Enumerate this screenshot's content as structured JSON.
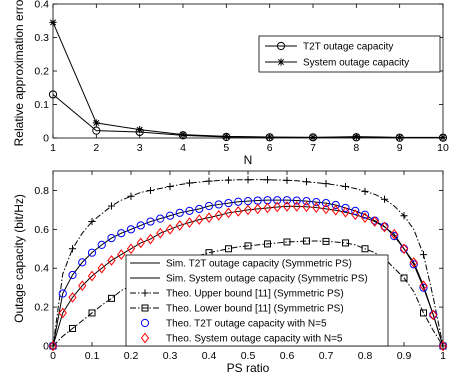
{
  "chart_data": [
    {
      "type": "line",
      "xlabel": "N",
      "ylabel": "Relative approximation error",
      "xlim": [
        1,
        10
      ],
      "ylim": [
        0,
        0.4
      ],
      "x_ticks": [
        "1",
        "2",
        "3",
        "4",
        "5",
        "6",
        "7",
        "8",
        "9",
        "10"
      ],
      "y_ticks": [
        "0",
        "0.1",
        "0.2",
        "0.3",
        "0.4"
      ],
      "grid": false,
      "legend_position": "top-right",
      "x": [
        1,
        2,
        3,
        4,
        5,
        6,
        7,
        8,
        9,
        10
      ],
      "series": [
        {
          "name": "T2T outage capacity",
          "marker": "circle",
          "line": "solid",
          "color": "#000000",
          "values": [
            0.13,
            0.022,
            0.018,
            0.008,
            0.003,
            0.002,
            0.002,
            0.002,
            0.001,
            0.001
          ]
        },
        {
          "name": "System outage capacity",
          "marker": "asterisk",
          "line": "solid",
          "color": "#000000",
          "values": [
            0.345,
            0.045,
            0.025,
            0.01,
            0.005,
            0.003,
            0.002,
            0.004,
            0.002,
            0.002
          ]
        }
      ]
    },
    {
      "type": "line",
      "xlabel": "PS ratio",
      "ylabel": "Outage capacity (bit/Hz)",
      "xlim": [
        0,
        1
      ],
      "ylim": [
        0,
        0.9
      ],
      "x_ticks": [
        "0",
        "0.1",
        "0.2",
        "0.3",
        "0.4",
        "0.5",
        "0.6",
        "0.7",
        "0.8",
        "0.9",
        "1"
      ],
      "y_ticks": [
        "0",
        "0.2",
        "0.4",
        "0.6",
        "0.8"
      ],
      "grid": false,
      "legend_position": "bottom-center",
      "x": [
        0,
        0.025,
        0.05,
        0.075,
        0.1,
        0.125,
        0.15,
        0.175,
        0.2,
        0.225,
        0.25,
        0.275,
        0.3,
        0.325,
        0.35,
        0.375,
        0.4,
        0.425,
        0.45,
        0.475,
        0.5,
        0.525,
        0.55,
        0.575,
        0.6,
        0.625,
        0.65,
        0.675,
        0.7,
        0.725,
        0.75,
        0.775,
        0.8,
        0.825,
        0.85,
        0.875,
        0.9,
        0.925,
        0.95,
        0.975,
        1
      ],
      "series": [
        {
          "name": "Sim. T2T outage capacity (Symmetric PS)",
          "marker": "none",
          "line": "solid",
          "color": "#000000",
          "values": [
            0,
            0.27,
            0.365,
            0.43,
            0.48,
            0.52,
            0.555,
            0.58,
            0.6,
            0.62,
            0.64,
            0.655,
            0.67,
            0.685,
            0.695,
            0.705,
            0.72,
            0.728,
            0.735,
            0.742,
            0.745,
            0.748,
            0.75,
            0.75,
            0.75,
            0.748,
            0.745,
            0.74,
            0.735,
            0.725,
            0.71,
            0.695,
            0.675,
            0.645,
            0.615,
            0.565,
            0.5,
            0.42,
            0.3,
            0.16,
            0
          ]
        },
        {
          "name": "Sim. System outage capacity (Symmetric PS)",
          "marker": "none",
          "line": "solid",
          "color": "#000000",
          "values": [
            0,
            0.17,
            0.25,
            0.31,
            0.36,
            0.4,
            0.44,
            0.47,
            0.5,
            0.53,
            0.55,
            0.58,
            0.6,
            0.62,
            0.635,
            0.65,
            0.66,
            0.672,
            0.685,
            0.692,
            0.7,
            0.705,
            0.71,
            0.715,
            0.718,
            0.718,
            0.716,
            0.712,
            0.705,
            0.698,
            0.688,
            0.675,
            0.66,
            0.64,
            0.612,
            0.575,
            0.5,
            0.43,
            0.31,
            0.16,
            0
          ]
        },
        {
          "name": "Theo. Upper bound [11] (Symmetric PS)",
          "marker": "plus",
          "line": "dashdot",
          "color": "#000000",
          "values": [
            0,
            0.37,
            0.5,
            0.58,
            0.64,
            0.68,
            0.72,
            0.75,
            0.77,
            0.79,
            0.8,
            0.81,
            0.82,
            0.83,
            0.838,
            0.843,
            0.848,
            0.851,
            0.853,
            0.855,
            0.855,
            0.856,
            0.855,
            0.854,
            0.852,
            0.85,
            0.845,
            0.84,
            0.835,
            0.828,
            0.82,
            0.81,
            0.795,
            0.78,
            0.755,
            0.72,
            0.67,
            0.6,
            0.47,
            0.25,
            0
          ]
        },
        {
          "name": "Theo. Lower bound [11] (Symmetric PS)",
          "marker": "square",
          "line": "dashdot",
          "color": "#000000",
          "values": [
            0,
            0.05,
            0.09,
            0.13,
            0.17,
            0.21,
            0.245,
            0.285,
            0.31,
            0.34,
            0.37,
            0.39,
            0.41,
            0.43,
            0.45,
            0.465,
            0.48,
            0.49,
            0.5,
            0.51,
            0.515,
            0.52,
            0.525,
            0.53,
            0.535,
            0.537,
            0.54,
            0.54,
            0.538,
            0.535,
            0.53,
            0.52,
            0.5,
            0.48,
            0.45,
            0.4,
            0.35,
            0.28,
            0.17,
            0.08,
            0
          ]
        },
        {
          "name": "Theo. T2T outage capacity with N=5",
          "marker": "circle",
          "line": "none",
          "color": "#0000ff",
          "values": [
            0,
            0.27,
            0.365,
            0.43,
            0.48,
            0.52,
            0.555,
            0.58,
            0.6,
            0.62,
            0.64,
            0.655,
            0.67,
            0.685,
            0.695,
            0.705,
            0.72,
            0.728,
            0.735,
            0.742,
            0.745,
            0.748,
            0.75,
            0.75,
            0.75,
            0.748,
            0.745,
            0.74,
            0.735,
            0.725,
            0.71,
            0.695,
            0.675,
            0.645,
            0.615,
            0.565,
            0.5,
            0.42,
            0.3,
            0.16,
            0
          ]
        },
        {
          "name": "Theo. System outage capacity with N=5",
          "marker": "diamond",
          "line": "none",
          "color": "#ff0000",
          "values": [
            0,
            0.17,
            0.25,
            0.31,
            0.36,
            0.4,
            0.44,
            0.47,
            0.5,
            0.53,
            0.55,
            0.58,
            0.6,
            0.62,
            0.635,
            0.65,
            0.66,
            0.672,
            0.685,
            0.692,
            0.7,
            0.705,
            0.71,
            0.715,
            0.718,
            0.718,
            0.716,
            0.712,
            0.705,
            0.698,
            0.688,
            0.675,
            0.66,
            0.64,
            0.612,
            0.575,
            0.5,
            0.43,
            0.31,
            0.16,
            0
          ]
        }
      ]
    }
  ]
}
